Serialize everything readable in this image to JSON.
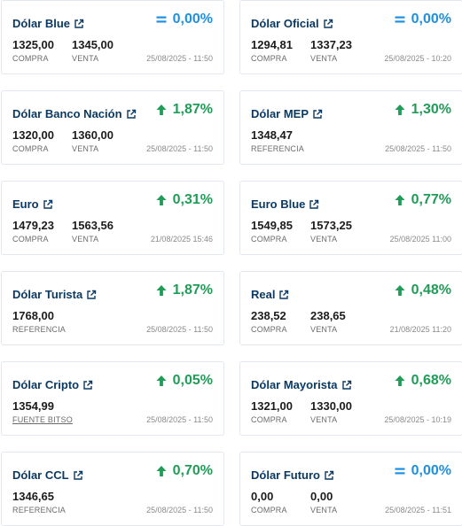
{
  "colors": {
    "up": "#1f9d57",
    "equal": "#1e90e0",
    "title": "#0a3a63"
  },
  "cards": [
    {
      "title": "Dólar Blue",
      "change": "0,00%",
      "trend": "equal",
      "values": [
        "1325,00",
        "1345,00"
      ],
      "labels": [
        "COMPRA",
        "VENTA"
      ],
      "timestamp": "25/08/2025 - 11:50"
    },
    {
      "title": "Dólar Oficial",
      "change": "0,00%",
      "trend": "equal",
      "values": [
        "1294,81",
        "1337,23"
      ],
      "labels": [
        "COMPRA",
        "VENTA"
      ],
      "timestamp": "25/08/2025 - 10:20"
    },
    {
      "title": "Dólar Banco Nación",
      "change": "1,87%",
      "trend": "up",
      "values": [
        "1320,00",
        "1360,00"
      ],
      "labels": [
        "COMPRA",
        "VENTA"
      ],
      "timestamp": "25/08/2025 - 11:50"
    },
    {
      "title": "Dólar MEP",
      "change": "1,30%",
      "trend": "up",
      "values": [
        "1348,47"
      ],
      "labels": [
        "REFERENCIA"
      ],
      "timestamp": "25/08/2025 - 11:50"
    },
    {
      "title": "Euro",
      "change": "0,31%",
      "trend": "up",
      "values": [
        "1479,23",
        "1563,56"
      ],
      "labels": [
        "COMPRA",
        "VENTA"
      ],
      "timestamp": "21/08/2025 15:46"
    },
    {
      "title": "Euro Blue",
      "change": "0,77%",
      "trend": "up",
      "values": [
        "1549,85",
        "1573,25"
      ],
      "labels": [
        "COMPRA",
        "VENTA"
      ],
      "timestamp": "25/08/2025 11:00"
    },
    {
      "title": "Dólar Turista",
      "change": "1,87%",
      "trend": "up",
      "values": [
        "1768,00"
      ],
      "labels": [
        "REFERENCIA"
      ],
      "timestamp": "25/08/2025 - 11:50"
    },
    {
      "title": "Real",
      "change": "0,48%",
      "trend": "up",
      "values": [
        "238,52",
        "238,65"
      ],
      "labels": [
        "COMPRA",
        "VENTA"
      ],
      "timestamp": "21/08/2025 11:20"
    },
    {
      "title": "Dólar Cripto",
      "change": "0,05%",
      "trend": "up",
      "values": [
        "1354,99"
      ],
      "labels": [
        "FUENTE BITSO"
      ],
      "timestamp": "25/08/2025 - 11:50"
    },
    {
      "title": "Dólar Mayorista",
      "change": "0,68%",
      "trend": "up",
      "values": [
        "1321,00",
        "1330,00"
      ],
      "labels": [
        "COMPRA",
        "VENTA"
      ],
      "timestamp": "25/08/2025 - 10:19"
    },
    {
      "title": "Dólar CCL",
      "change": "0,70%",
      "trend": "up",
      "values": [
        "1346,65"
      ],
      "labels": [
        "REFERENCIA"
      ],
      "timestamp": "25/08/2025 - 11:50"
    },
    {
      "title": "Dólar Futuro",
      "change": "0,00%",
      "trend": "equal",
      "values": [
        "0,00",
        "0,00"
      ],
      "labels": [
        "COMPRA",
        "VENTA"
      ],
      "timestamp": "25/08/2025 - 11:51"
    }
  ]
}
